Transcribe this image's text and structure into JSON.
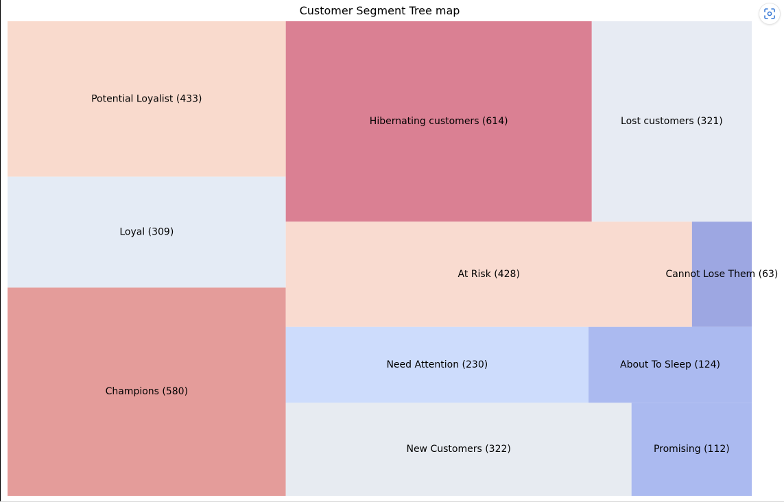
{
  "chart_data": {
    "type": "treemap",
    "title": "Customer Segment Tree map",
    "segments": [
      {
        "name": "Potential Loyalist",
        "value": 433,
        "label": "Potential Loyalist (433)",
        "color": "#f9dacd"
      },
      {
        "name": "Loyal",
        "value": 309,
        "label": "Loyal (309)",
        "color": "#e4ebf5"
      },
      {
        "name": "Champions",
        "value": 580,
        "label": "Champions (580)",
        "color": "#e49c9a"
      },
      {
        "name": "Hibernating customers",
        "value": 614,
        "label": "Hibernating customers (614)",
        "color": "#da8093"
      },
      {
        "name": "Lost customers",
        "value": 321,
        "label": "Lost customers (321)",
        "color": "#e7ebf3"
      },
      {
        "name": "At Risk",
        "value": 428,
        "label": "At Risk (428)",
        "color": "#f9dbd0"
      },
      {
        "name": "Cannot Lose Them",
        "value": 63,
        "label": "Cannot Lose Them (63)",
        "color": "#9da7e2"
      },
      {
        "name": "Need Attention",
        "value": 230,
        "label": "Need Attention (230)",
        "color": "#cddcfc"
      },
      {
        "name": "About To Sleep",
        "value": 124,
        "label": "About To Sleep (124)",
        "color": "#abbaf0"
      },
      {
        "name": "New Customers",
        "value": 322,
        "label": "New Customers (322)",
        "color": "#e7ebf1"
      },
      {
        "name": "Promising",
        "value": 112,
        "label": "Promising (112)",
        "color": "#abbaf0"
      }
    ],
    "layout_order": [
      [
        "Potential Loyalist",
        "Loyal",
        "Champions"
      ],
      [
        "Hibernating customers",
        "Lost customers"
      ],
      [
        "At Risk",
        "Cannot Lose Them"
      ],
      [
        "Need Attention",
        "About To Sleep"
      ],
      [
        "New Customers",
        "Promising"
      ]
    ]
  },
  "controls": {
    "focus_icon": "focus-mode-icon"
  }
}
